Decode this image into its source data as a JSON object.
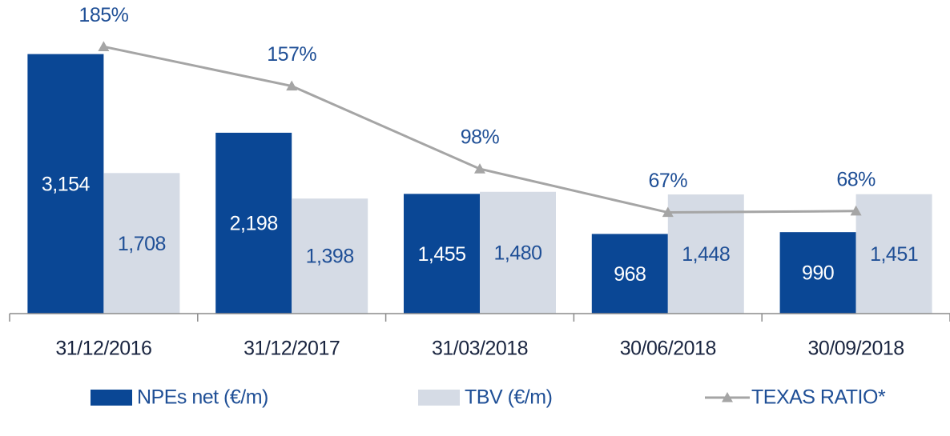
{
  "chart_data": {
    "type": "bar",
    "categories": [
      "31/12/2016",
      "31/12/2017",
      "31/03/2018",
      "30/06/2018",
      "30/09/2018"
    ],
    "series": [
      {
        "name": "NPEs net (€/m)",
        "color": "#0a4795",
        "values": [
          3154,
          2198,
          1455,
          968,
          990
        ],
        "value_labels": [
          "3,154",
          "2,198",
          "1,455",
          "968",
          "990"
        ]
      },
      {
        "name": "TBV (€/m)",
        "color": "#d5dbe5",
        "values": [
          1708,
          1398,
          1480,
          1448,
          1451
        ],
        "value_labels": [
          "1,708",
          "1,398",
          "1,480",
          "1,448",
          "1,451"
        ]
      },
      {
        "name": "TEXAS RATIO*",
        "type": "line",
        "axis": "y2",
        "color": "#a5a5a5",
        "values": [
          185,
          157,
          98,
          67,
          68
        ],
        "value_labels": [
          "185%",
          "157%",
          "98%",
          "67%",
          "68%"
        ]
      }
    ],
    "ylim": [
      0,
      3500
    ],
    "y2lim": [
      -5,
      200
    ],
    "legend": "bottom"
  }
}
